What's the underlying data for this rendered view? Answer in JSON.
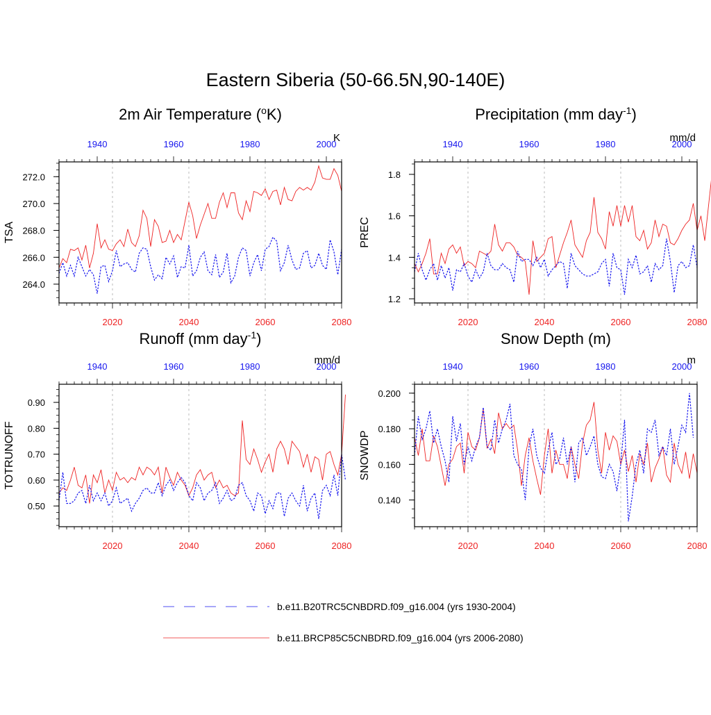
{
  "figure": {
    "title": "Eastern Siberia (50-66.5N,90-140E)",
    "colors": {
      "past": "#1515ee",
      "future": "#ee2222",
      "axis": "#000000",
      "grid": "#bbbbbb"
    }
  },
  "legend": {
    "items": [
      {
        "label": "b.e11.B20TRC5CNBDRD.f09_g16.004 (yrs 1930-2004)",
        "style": "dashed",
        "color": "#1515ee"
      },
      {
        "label": "b.e11.BRCP85C5CNBDRD.f09_g16.004 (yrs 2006-2080)",
        "style": "solid",
        "color": "#ee2222"
      }
    ]
  },
  "chart_data": [
    {
      "type": "line",
      "title": "2m Air Temperature (°K)",
      "title_main": "2m Air Temperature (",
      "title_sup": "o",
      "title_end": "K)",
      "ylabel": "TSA",
      "units": "K",
      "ylim": [
        262.6,
        273.1
      ],
      "yticks": [
        264,
        266,
        268,
        270,
        272
      ],
      "ytick_labels": [
        "264.0",
        "266.0",
        "268.0",
        "270.0",
        "272.0"
      ],
      "bottom_axis": {
        "range": [
          2006,
          2080
        ],
        "ticks": [
          2020,
          2040,
          2060,
          2080
        ],
        "labels": [
          "2020",
          "2040",
          "2060",
          "2080"
        ],
        "color": "#ee2222"
      },
      "top_axis": {
        "range": [
          1930,
          2004
        ],
        "ticks": [
          1940,
          1960,
          1980,
          2000
        ],
        "labels": [
          "1940",
          "1960",
          "1980",
          "2000"
        ],
        "color": "#1515ee"
      },
      "series": [
        {
          "key": "future",
          "start_year": 2006,
          "values": [
            265.2,
            265.9,
            265.6,
            266.6,
            266.5,
            266.7,
            265.8,
            266.9,
            265.2,
            266.3,
            268.5,
            266.7,
            267.3,
            266.6,
            266.5,
            267.0,
            267.3,
            266.8,
            268.1,
            267.1,
            266.8,
            267.6,
            269.5,
            268.9,
            266.8,
            268.8,
            268.3,
            267.1,
            267.2,
            268.0,
            267.1,
            267.7,
            267.3,
            268.7,
            270.1,
            269.1,
            267.4,
            268.4,
            269.2,
            270.0,
            268.9,
            268.9,
            270.1,
            270.8,
            269.7,
            270.8,
            270.8,
            269.3,
            268.8,
            270.2,
            269.4,
            270.9,
            270.8,
            270.6,
            271.1,
            270.3,
            270.9,
            271.0,
            269.9,
            271.2,
            270.3,
            270.2,
            270.9,
            271.2,
            271.0,
            271.2,
            271.0,
            271.6,
            272.8,
            271.9,
            271.8,
            271.8,
            272.6,
            272.1,
            270.9
          ]
        },
        {
          "key": "past",
          "start_year": 1930,
          "values": [
            264.8,
            265.6,
            264.6,
            265.4,
            264.6,
            266.0,
            265.3,
            264.6,
            265.1,
            264.7,
            263.3,
            265.3,
            265.4,
            264.2,
            265.0,
            266.5,
            265.3,
            265.5,
            265.6,
            265.1,
            264.9,
            266.3,
            266.7,
            266.6,
            265.3,
            264.3,
            264.7,
            264.4,
            266.0,
            265.5,
            266.1,
            264.5,
            265.3,
            265.2,
            266.9,
            264.6,
            265.0,
            266.0,
            266.4,
            265.0,
            264.7,
            266.2,
            264.5,
            264.9,
            266.3,
            264.1,
            264.6,
            266.0,
            266.7,
            266.5,
            264.6,
            265.6,
            266.2,
            265.0,
            266.6,
            266.8,
            267.5,
            267.2,
            265.0,
            265.6,
            266.9,
            265.8,
            265.1,
            265.2,
            266.3,
            266.5,
            265.2,
            265.4,
            266.3,
            265.4,
            265.1,
            267.3,
            266.4,
            264.7,
            266.6
          ]
        }
      ]
    },
    {
      "type": "line",
      "title": "Precipitation (mm day-1)",
      "title_main": "Precipitation (mm day",
      "title_sup": "-1",
      "title_end": ")",
      "ylabel": "PREC",
      "units": "mm/d",
      "ylim": [
        1.18,
        1.86
      ],
      "yticks": [
        1.2,
        1.4,
        1.6,
        1.8
      ],
      "ytick_labels": [
        "1.2",
        "1.4",
        "1.6",
        "1.8"
      ],
      "bottom_axis": {
        "range": [
          2006,
          2080
        ],
        "ticks": [
          2020,
          2040,
          2060,
          2080
        ],
        "labels": [
          "2020",
          "2040",
          "2060",
          "2080"
        ],
        "color": "#ee2222"
      },
      "top_axis": {
        "range": [
          1930,
          2004
        ],
        "ticks": [
          1940,
          1960,
          1980,
          2000
        ],
        "labels": [
          "1940",
          "1960",
          "1980",
          "2000"
        ],
        "color": "#1515ee"
      },
      "series": [
        {
          "key": "future",
          "start_year": 2006,
          "values": [
            1.37,
            1.33,
            1.37,
            1.42,
            1.49,
            1.32,
            1.32,
            1.42,
            1.37,
            1.44,
            1.46,
            1.42,
            1.45,
            1.36,
            1.38,
            1.37,
            1.35,
            1.43,
            1.42,
            1.41,
            1.43,
            1.56,
            1.46,
            1.43,
            1.47,
            1.47,
            1.45,
            1.41,
            1.4,
            1.38,
            1.22,
            1.48,
            1.38,
            1.4,
            1.42,
            1.49,
            1.5,
            1.35,
            1.41,
            1.47,
            1.52,
            1.58,
            1.46,
            1.43,
            1.4,
            1.48,
            1.52,
            1.69,
            1.52,
            1.49,
            1.44,
            1.62,
            1.55,
            1.65,
            1.55,
            1.65,
            1.57,
            1.65,
            1.5,
            1.48,
            1.53,
            1.44,
            1.47,
            1.58,
            1.5,
            1.56,
            1.55,
            1.47,
            1.46,
            1.49,
            1.53,
            1.56,
            1.58,
            1.66,
            1.53,
            1.6,
            1.48,
            1.65,
            1.82
          ]
        },
        {
          "key": "past",
          "start_year": 1930,
          "values": [
            1.33,
            1.42,
            1.34,
            1.29,
            1.34,
            1.37,
            1.29,
            1.36,
            1.3,
            1.35,
            1.24,
            1.34,
            1.33,
            1.37,
            1.31,
            1.28,
            1.34,
            1.3,
            1.33,
            1.42,
            1.36,
            1.34,
            1.34,
            1.37,
            1.35,
            1.34,
            1.28,
            1.43,
            1.38,
            1.39,
            1.39,
            1.36,
            1.4,
            1.35,
            1.39,
            1.31,
            1.34,
            1.36,
            1.38,
            1.37,
            1.25,
            1.42,
            1.36,
            1.34,
            1.32,
            1.31,
            1.31,
            1.32,
            1.33,
            1.37,
            1.39,
            1.26,
            1.42,
            1.35,
            1.34,
            1.22,
            1.39,
            1.35,
            1.41,
            1.32,
            1.33,
            1.36,
            1.28,
            1.37,
            1.34,
            1.36,
            1.49,
            1.38,
            1.23,
            1.36,
            1.38,
            1.35,
            1.36,
            1.46,
            1.35
          ]
        }
      ]
    },
    {
      "type": "line",
      "title": "Runoff (mm day-1)",
      "title_main": "Runoff (mm day",
      "title_sup": "-1",
      "title_end": ")",
      "ylabel": "TOTRUNOFF",
      "units": "mm/d",
      "ylim": [
        0.42,
        0.97
      ],
      "yticks": [
        0.5,
        0.6,
        0.7,
        0.8,
        0.9
      ],
      "ytick_labels": [
        "0.50",
        "0.60",
        "0.70",
        "0.80",
        "0.90"
      ],
      "bottom_axis": {
        "range": [
          2006,
          2080
        ],
        "ticks": [
          2020,
          2040,
          2060,
          2080
        ],
        "labels": [
          "2020",
          "2040",
          "2060",
          "2080"
        ],
        "color": "#ee2222"
      },
      "top_axis": {
        "range": [
          1930,
          2004
        ],
        "ticks": [
          1940,
          1960,
          1980,
          2000
        ],
        "labels": [
          "1940",
          "1960",
          "1980",
          "2000"
        ],
        "color": "#1515ee"
      },
      "series": [
        {
          "key": "future",
          "start_year": 2006,
          "values": [
            0.55,
            0.57,
            0.56,
            0.6,
            0.65,
            0.58,
            0.57,
            0.62,
            0.51,
            0.62,
            0.59,
            0.64,
            0.55,
            0.6,
            0.56,
            0.63,
            0.6,
            0.61,
            0.59,
            0.61,
            0.6,
            0.65,
            0.62,
            0.65,
            0.64,
            0.62,
            0.65,
            0.55,
            0.65,
            0.61,
            0.58,
            0.63,
            0.6,
            0.58,
            0.54,
            0.57,
            0.62,
            0.64,
            0.6,
            0.62,
            0.63,
            0.57,
            0.6,
            0.57,
            0.58,
            0.55,
            0.54,
            0.55,
            0.83,
            0.68,
            0.66,
            0.72,
            0.68,
            0.63,
            0.67,
            0.7,
            0.63,
            0.72,
            0.75,
            0.72,
            0.66,
            0.75,
            0.73,
            0.71,
            0.65,
            0.7,
            0.63,
            0.69,
            0.68,
            0.6,
            0.7,
            0.71,
            0.66,
            0.62,
            0.7,
            0.93
          ]
        },
        {
          "key": "past",
          "start_year": 1930,
          "values": [
            0.52,
            0.63,
            0.51,
            0.51,
            0.52,
            0.55,
            0.56,
            0.51,
            0.58,
            0.52,
            0.55,
            0.52,
            0.55,
            0.5,
            0.52,
            0.57,
            0.51,
            0.52,
            0.53,
            0.48,
            0.51,
            0.53,
            0.56,
            0.57,
            0.55,
            0.55,
            0.59,
            0.54,
            0.58,
            0.6,
            0.56,
            0.59,
            0.61,
            0.59,
            0.54,
            0.52,
            0.59,
            0.57,
            0.52,
            0.55,
            0.56,
            0.59,
            0.51,
            0.53,
            0.56,
            0.52,
            0.53,
            0.58,
            0.59,
            0.54,
            0.52,
            0.48,
            0.55,
            0.54,
            0.47,
            0.52,
            0.49,
            0.55,
            0.55,
            0.46,
            0.53,
            0.55,
            0.52,
            0.5,
            0.58,
            0.48,
            0.53,
            0.55,
            0.45,
            0.56,
            0.58,
            0.54,
            0.62,
            0.54,
            0.7,
            0.6
          ]
        }
      ]
    },
    {
      "type": "line",
      "title": "Snow Depth (m)",
      "title_main": "Snow Depth (m)",
      "title_sup": "",
      "title_end": "",
      "ylabel": "SNOWDP",
      "units": "m",
      "ylim": [
        0.125,
        0.205
      ],
      "yticks": [
        0.14,
        0.16,
        0.18,
        0.2
      ],
      "ytick_labels": [
        "0.140",
        "0.160",
        "0.180",
        "0.200"
      ],
      "bottom_axis": {
        "range": [
          2006,
          2080
        ],
        "ticks": [
          2020,
          2040,
          2060,
          2080
        ],
        "labels": [
          "2020",
          "2040",
          "2060",
          "2080"
        ],
        "color": "#ee2222"
      },
      "top_axis": {
        "range": [
          1930,
          2004
        ],
        "ticks": [
          1940,
          1960,
          1980,
          2000
        ],
        "labels": [
          "1940",
          "1960",
          "1980",
          "2000"
        ],
        "color": "#1515ee"
      },
      "series": [
        {
          "key": "future",
          "start_year": 2006,
          "values": [
            0.175,
            0.165,
            0.18,
            0.162,
            0.162,
            0.176,
            0.17,
            0.159,
            0.148,
            0.16,
            0.163,
            0.17,
            0.172,
            0.155,
            0.178,
            0.17,
            0.168,
            0.175,
            0.191,
            0.169,
            0.174,
            0.166,
            0.189,
            0.18,
            0.183,
            0.18,
            0.182,
            0.168,
            0.148,
            0.165,
            0.175,
            0.162,
            0.152,
            0.143,
            0.165,
            0.18,
            0.155,
            0.168,
            0.16,
            0.16,
            0.152,
            0.17,
            0.16,
            0.152,
            0.172,
            0.182,
            0.185,
            0.195,
            0.168,
            0.155,
            0.178,
            0.168,
            0.176,
            0.173,
            0.16,
            0.168,
            0.156,
            0.165,
            0.15,
            0.166,
            0.16,
            0.172,
            0.15,
            0.158,
            0.163,
            0.17,
            0.154,
            0.15,
            0.172,
            0.16,
            0.155,
            0.167,
            0.152,
            0.166,
            0.155
          ]
        },
        {
          "key": "past",
          "start_year": 1930,
          "values": [
            0.165,
            0.187,
            0.174,
            0.18,
            0.19,
            0.172,
            0.18,
            0.17,
            0.162,
            0.15,
            0.187,
            0.173,
            0.183,
            0.16,
            0.17,
            0.162,
            0.17,
            0.175,
            0.192,
            0.17,
            0.168,
            0.185,
            0.172,
            0.18,
            0.185,
            0.194,
            0.165,
            0.16,
            0.157,
            0.14,
            0.17,
            0.18,
            0.165,
            0.158,
            0.155,
            0.168,
            0.178,
            0.16,
            0.163,
            0.175,
            0.16,
            0.17,
            0.15,
            0.172,
            0.175,
            0.165,
            0.17,
            0.176,
            0.16,
            0.153,
            0.152,
            0.16,
            0.156,
            0.145,
            0.16,
            0.185,
            0.128,
            0.142,
            0.16,
            0.168,
            0.155,
            0.18,
            0.178,
            0.185,
            0.165,
            0.17,
            0.165,
            0.18,
            0.16,
            0.17,
            0.182,
            0.178,
            0.2,
            0.175
          ]
        }
      ]
    }
  ]
}
